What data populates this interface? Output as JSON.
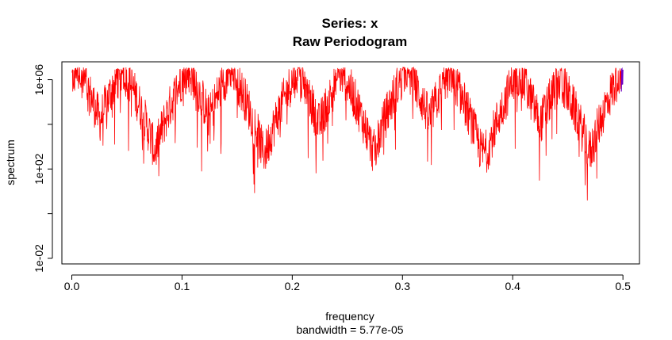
{
  "chart_data": {
    "type": "line",
    "title": "Series: x",
    "subtitle": "Raw Periodogram",
    "xlabel": "frequency",
    "sublabel": "bandwidth = 5.77e-05",
    "ylabel": "spectrum",
    "y_scale": "log",
    "xlim": [
      -0.009,
      0.515
    ],
    "ylim_log10": [
      -2.25,
      6.8
    ],
    "x_ticks": [
      {
        "value": 0.0,
        "label": "0.0"
      },
      {
        "value": 0.1,
        "label": "0.1"
      },
      {
        "value": 0.2,
        "label": "0.2"
      },
      {
        "value": 0.3,
        "label": "0.3"
      },
      {
        "value": 0.4,
        "label": "0.4"
      },
      {
        "value": 0.5,
        "label": "0.5"
      }
    ],
    "y_ticks": [
      {
        "value_log10": -2,
        "label": "1e-02"
      },
      {
        "value_log10": 0,
        "label": ""
      },
      {
        "value_log10": 2,
        "label": "1e+02"
      },
      {
        "value_log10": 4,
        "label": ""
      },
      {
        "value_log10": 6,
        "label": "1e+06"
      }
    ],
    "line_color": "#ff0000",
    "end_segment_color": "#6a00c8",
    "peak_frequencies": [
      0.005,
      0.046,
      0.105,
      0.144,
      0.204,
      0.245,
      0.304,
      0.343,
      0.405,
      0.443,
      0.5
    ],
    "peak_values_log10": [
      6.5,
      6.5,
      6.5,
      6.5,
      6.3,
      6.3,
      6.5,
      6.3,
      6.3,
      6.0,
      6.5
    ],
    "baseline_log10": 2.8,
    "noise_amplitude_log10": 1.0,
    "n_points": 1750
  }
}
